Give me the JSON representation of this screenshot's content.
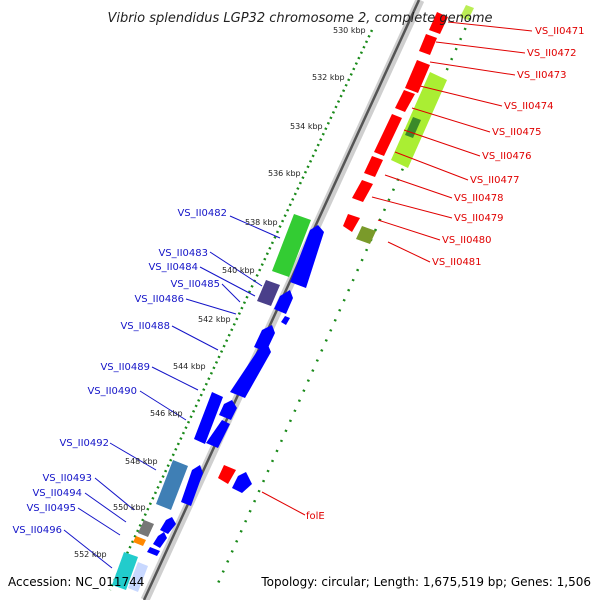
{
  "title": "Vibrio splendidus LGP32 chromosome 2, complete genome",
  "accession": "Accession: NC_011744",
  "topology": "Topology: circular; Length: 1,675,519 bp; Genes: 1,506",
  "kbp_ticks": [
    "530 kbp",
    "532 kbp",
    "534 kbp",
    "536 kbp",
    "538 kbp",
    "540 kbp",
    "542 kbp",
    "544 kbp",
    "546 kbp",
    "548 kbp",
    "550 kbp",
    "552 kbp"
  ],
  "reverse_labels": [
    "VS_II0471",
    "VS_II0472",
    "VS_II0473",
    "VS_II0474",
    "VS_II0475",
    "VS_II0476",
    "VS_II0477",
    "VS_II0478",
    "VS_II0479",
    "VS_II0480",
    "VS_II0481",
    "folE"
  ],
  "forward_labels": [
    "VS_II0482",
    "VS_II0483",
    "VS_II0484",
    "VS_II0485",
    "VS_II0486",
    "VS_II0488",
    "VS_II0489",
    "VS_II0490",
    "VS_II0492",
    "VS_II0493",
    "VS_II0494",
    "VS_II0495",
    "VS_II0496"
  ],
  "colors": {
    "red": "#ff0000",
    "blue": "#0000ff",
    "green": "#33cc33",
    "lime": "#aaee33",
    "olive": "#7a9a2a",
    "gray": "#777777",
    "purple": "#4a3f8a",
    "steel": "#3f7fb5",
    "cyan": "#22cccc",
    "orange": "#ff8800",
    "dots": "#1a8a1a"
  }
}
